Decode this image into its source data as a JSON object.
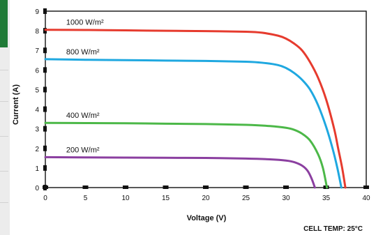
{
  "chart_data": {
    "type": "line",
    "xlabel": "Voltage (V)",
    "ylabel": "Current (A)",
    "xlim": [
      0,
      40
    ],
    "ylim": [
      0,
      9
    ],
    "x_ticks": [
      "0",
      "5",
      "10",
      "15",
      "20",
      "25",
      "30",
      "35",
      "40"
    ],
    "y_ticks": [
      "0",
      "1",
      "2",
      "3",
      "4",
      "5",
      "6",
      "7",
      "8",
      "9"
    ],
    "grid": false,
    "annotation": "CELL TEMP: 25°C",
    "series": [
      {
        "name": "1000 W/m²",
        "color": "#e63b2e",
        "x": [
          0,
          5,
          10,
          15,
          20,
          25,
          27,
          29,
          30,
          31,
          32,
          33,
          34,
          35,
          36,
          36.5,
          37,
          37.4
        ],
        "y": [
          8.05,
          8.04,
          8.02,
          8.0,
          7.98,
          7.95,
          7.9,
          7.75,
          7.6,
          7.35,
          7.0,
          6.4,
          5.6,
          4.5,
          3.0,
          2.0,
          1.0,
          0
        ]
      },
      {
        "name": "800 W/m²",
        "color": "#1fa8e0",
        "x": [
          0,
          5,
          10,
          15,
          20,
          25,
          27,
          29,
          30,
          31,
          32,
          33,
          34,
          35,
          35.8,
          36.4,
          36.9
        ],
        "y": [
          6.55,
          6.52,
          6.5,
          6.48,
          6.46,
          6.42,
          6.37,
          6.25,
          6.1,
          5.85,
          5.5,
          5.0,
          4.2,
          3.1,
          2.0,
          1.0,
          0
        ]
      },
      {
        "name": "400 W/m²",
        "color": "#4cb848",
        "x": [
          0,
          5,
          10,
          15,
          20,
          25,
          28,
          30,
          31,
          32,
          33,
          34,
          34.6,
          35.1
        ],
        "y": [
          3.3,
          3.29,
          3.28,
          3.26,
          3.24,
          3.2,
          3.14,
          3.05,
          2.95,
          2.75,
          2.4,
          1.7,
          1.0,
          0
        ]
      },
      {
        "name": "200 W/m²",
        "color": "#8b3fa0",
        "x": [
          0,
          5,
          10,
          15,
          20,
          25,
          28,
          30,
          31,
          32,
          32.7,
          33.2,
          33.6
        ],
        "y": [
          1.55,
          1.54,
          1.53,
          1.52,
          1.51,
          1.48,
          1.44,
          1.38,
          1.3,
          1.12,
          0.85,
          0.45,
          0
        ]
      }
    ]
  }
}
